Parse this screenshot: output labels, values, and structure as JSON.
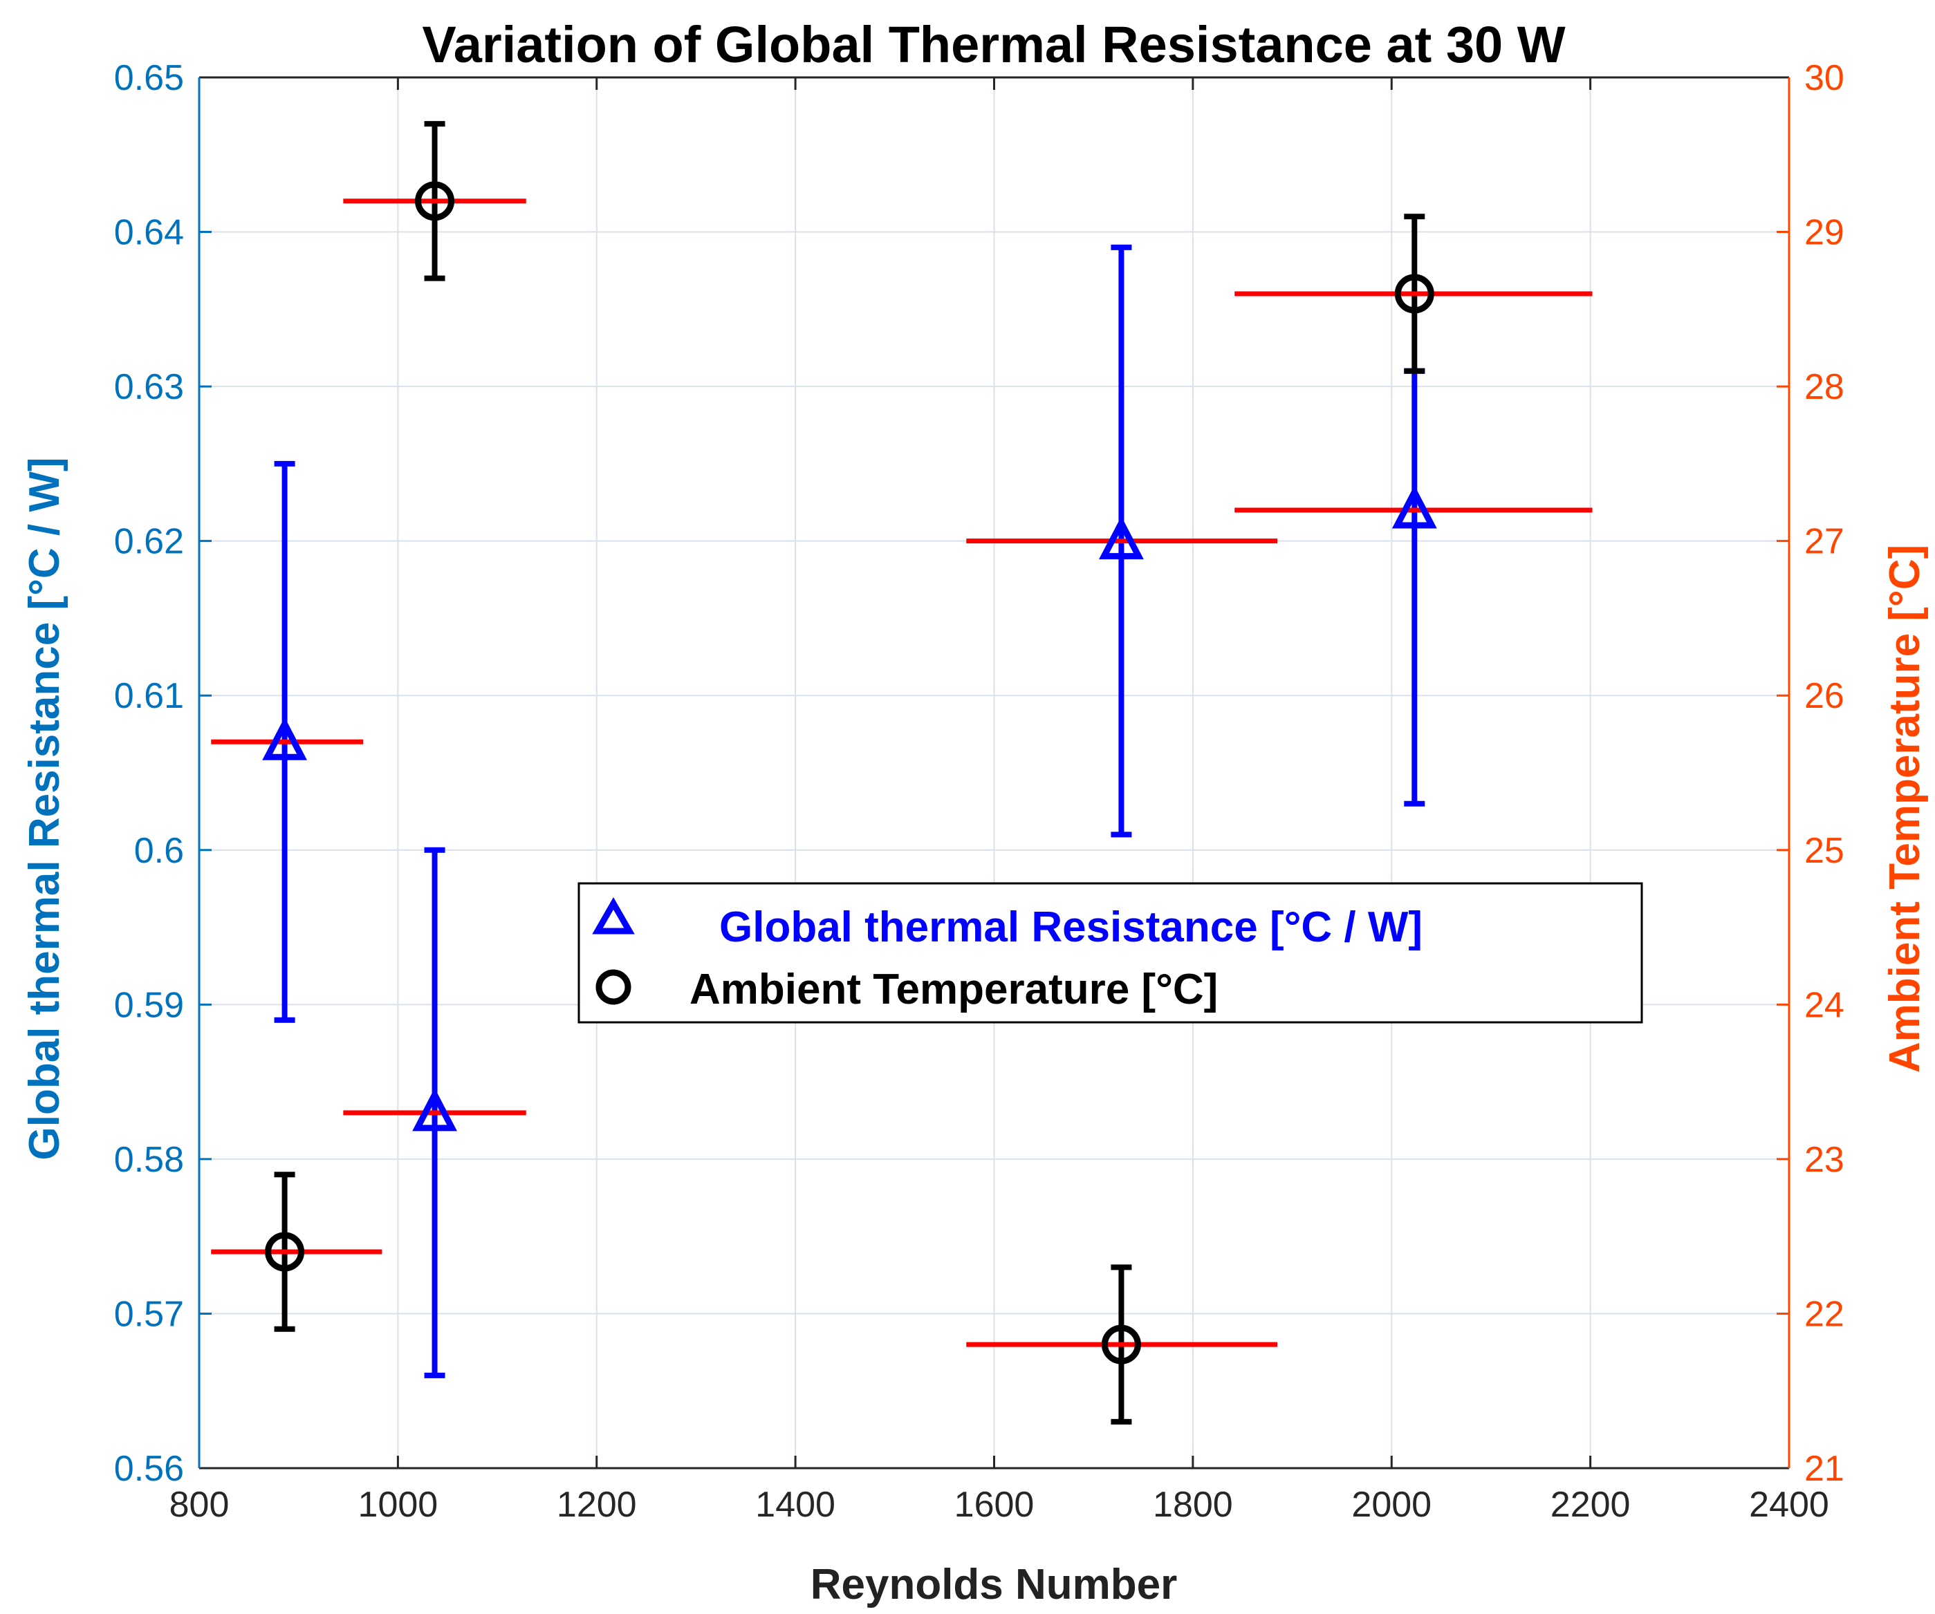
{
  "chart_data": {
    "type": "scatter",
    "title": "Variation of Global Thermal Resistance at 30 W",
    "xlabel": "Reynolds Number",
    "ylabel_left": "Global thermal Resistance [°C / W]",
    "ylabel_right": "Ambient Temperature [°C]",
    "xlim": [
      800,
      2400
    ],
    "ylim_left": [
      0.56,
      0.65
    ],
    "ylim_right": [
      21,
      30
    ],
    "x_ticks": [
      "800",
      "1000",
      "1200",
      "1400",
      "1600",
      "1800",
      "2000",
      "2200",
      "2400"
    ],
    "y_left_ticks": [
      "0.56",
      "0.57",
      "0.58",
      "0.59",
      "0.6",
      "0.61",
      "0.62",
      "0.63",
      "0.64",
      "0.65"
    ],
    "y_right_ticks": [
      "21",
      "22",
      "23",
      "24",
      "25",
      "26",
      "27",
      "28",
      "29",
      "30"
    ],
    "grid": true,
    "legend_position": "center",
    "colors": {
      "left_axis": "#0072BD",
      "right_axis": "#FF4500",
      "resistance": "#0000FF",
      "ambient": "#000000",
      "x_error": "#FF0000",
      "grid": "#D9E1EA"
    },
    "series": [
      {
        "name": "Global thermal Resistance [°C / W]",
        "axis": "left",
        "marker": "triangle",
        "points": [
          {
            "x": 886,
            "y": 0.607,
            "ylow": 0.589,
            "yhigh": 0.625,
            "xlow": 812,
            "xhigh": 965
          },
          {
            "x": 1037,
            "y": 0.583,
            "ylow": 0.566,
            "yhigh": 0.6,
            "xlow": 945,
            "xhigh": 1129
          },
          {
            "x": 1728,
            "y": 0.62,
            "ylow": 0.601,
            "yhigh": 0.639,
            "xlow": 1572,
            "xhigh": 1885
          },
          {
            "x": 2023,
            "y": 0.622,
            "ylow": 0.603,
            "yhigh": 0.631,
            "xlow": 1842,
            "xhigh": 2202
          }
        ]
      },
      {
        "name": "Ambient Temperature [°C]",
        "axis": "right",
        "marker": "circle",
        "points": [
          {
            "x": 886,
            "y": 22.4,
            "ylow": 21.9,
            "yhigh": 22.9,
            "xlow": 812,
            "xhigh": 984
          },
          {
            "x": 1037,
            "y": 29.2,
            "ylow": 28.7,
            "yhigh": 29.7,
            "xlow": 945,
            "xhigh": 1129
          },
          {
            "x": 1728,
            "y": 21.8,
            "ylow": 21.3,
            "yhigh": 22.3,
            "xlow": 1572,
            "xhigh": 1885
          },
          {
            "x": 2023,
            "y": 28.6,
            "ylow": 28.1,
            "yhigh": 29.1,
            "xlow": 1842,
            "xhigh": 2202
          }
        ]
      }
    ]
  }
}
